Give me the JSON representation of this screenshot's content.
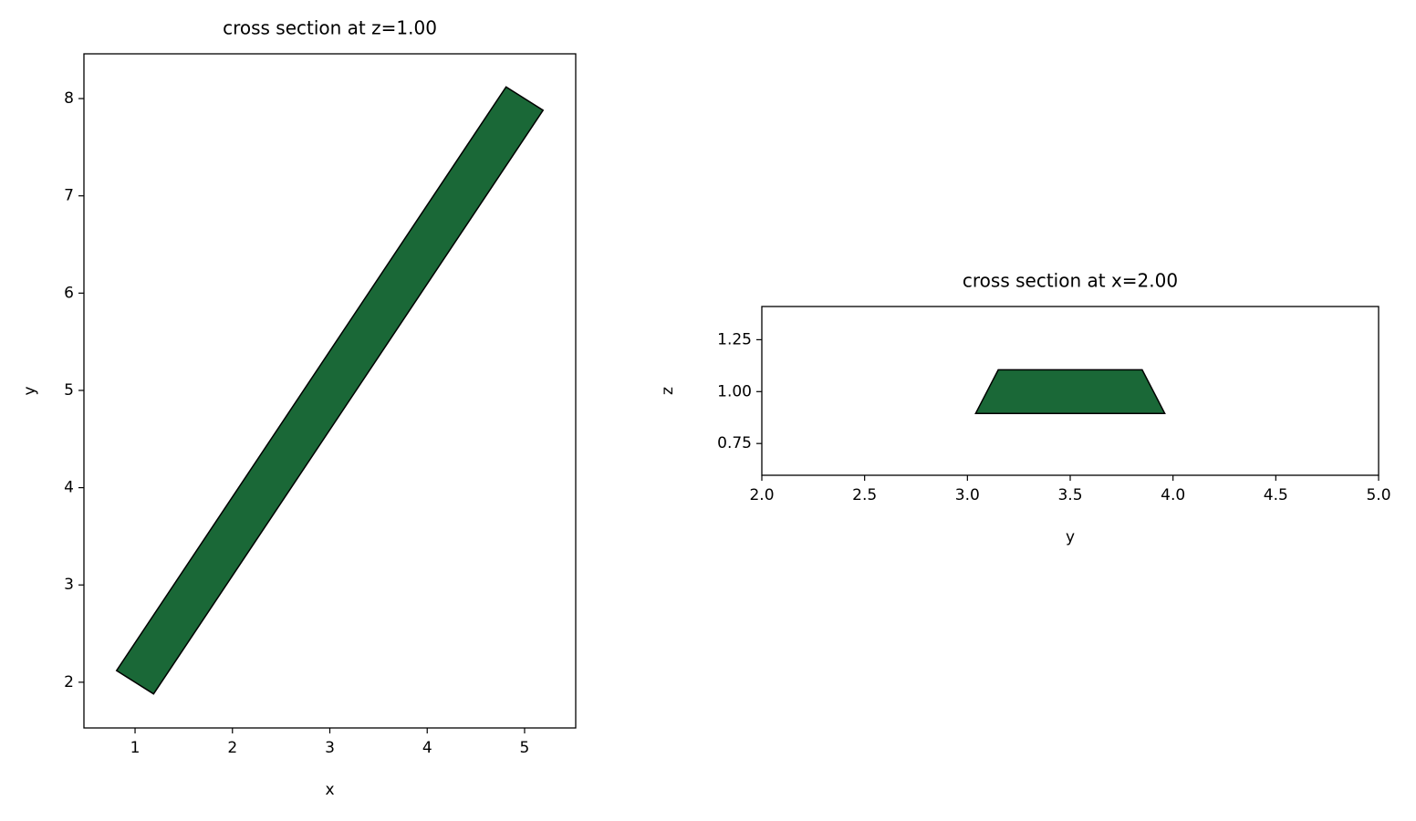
{
  "chart_data": [
    {
      "type": "polygon",
      "title": "cross section at z=1.00",
      "xlabel": "x",
      "ylabel": "y",
      "x": [
        0.81,
        1.19,
        5.19,
        4.81
      ],
      "y": [
        2.12,
        1.88,
        7.88,
        8.12
      ],
      "color": "#1a6837",
      "edgecolor": "#000000",
      "xlim": [
        0.475,
        5.525
      ],
      "ylim": [
        1.53,
        8.46
      ],
      "xticks": [
        1,
        2,
        3,
        4,
        5
      ],
      "yticks": [
        2,
        3,
        4,
        5,
        6,
        7,
        8
      ]
    },
    {
      "type": "polygon",
      "title": "cross section at x=2.00",
      "xlabel": "y",
      "ylabel": "z",
      "x": [
        3.04,
        3.96,
        3.85,
        3.15
      ],
      "y": [
        0.895,
        0.895,
        1.105,
        1.105
      ],
      "color": "#1a6837",
      "edgecolor": "#000000",
      "xlim": [
        2,
        5
      ],
      "ylim": [
        0.597,
        1.41
      ],
      "xticks": [
        {
          "value": 2,
          "label": "2.0"
        },
        2.5,
        {
          "value": 3,
          "label": "3.0"
        },
        3.5,
        {
          "value": 4,
          "label": "4.0"
        },
        4.5,
        {
          "value": 5,
          "label": "5.0"
        }
      ],
      "yticks": [
        0.75,
        {
          "value": 1,
          "label": "1.00"
        },
        1.25
      ]
    }
  ]
}
